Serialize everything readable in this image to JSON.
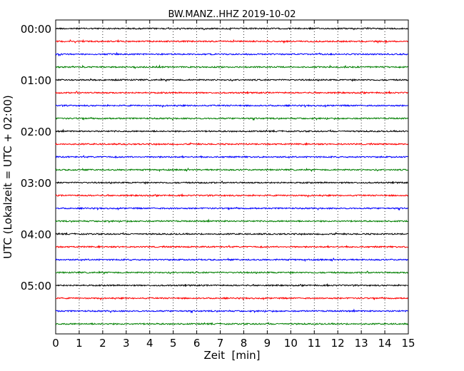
{
  "chart_data": {
    "type": "line",
    "title": "BW.MANZ..HHZ 2019-10-02",
    "xlabel": "Zeit  [min]",
    "ylabel": "UTC (Lokalzeit = UTC + 02:00)",
    "xlim": [
      0,
      15
    ],
    "x_ticks": [
      "0",
      "1",
      "2",
      "3",
      "4",
      "5",
      "6",
      "7",
      "8",
      "9",
      "10",
      "11",
      "12",
      "13",
      "14",
      "15"
    ],
    "y_tick_labels": [
      "00:00",
      "01:00",
      "02:00",
      "03:00",
      "04:00",
      "05:00"
    ],
    "grid": "vertical dotted",
    "trace_count": 24,
    "trace_interval_min": 15,
    "trace_colors": [
      "#000000",
      "#ff0000",
      "#0000ff",
      "#007f00"
    ]
  }
}
